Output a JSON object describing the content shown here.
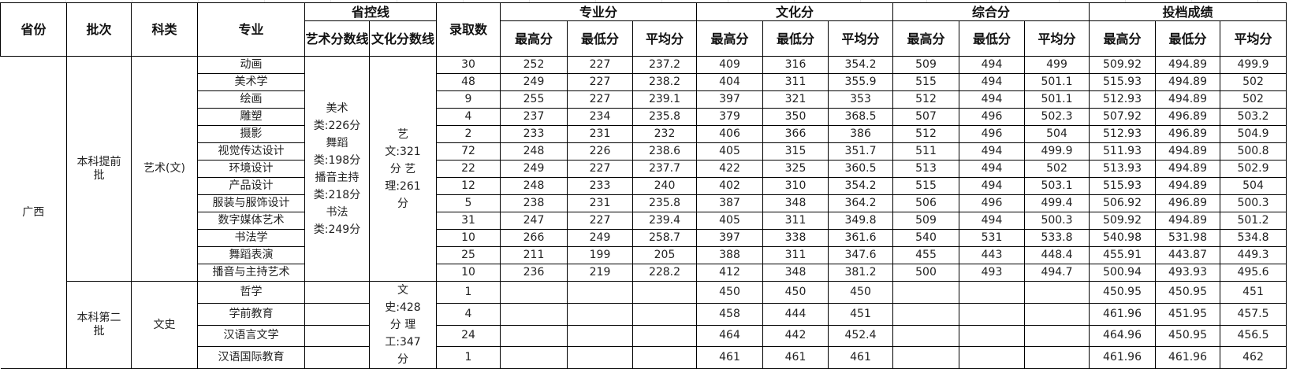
{
  "headers": {
    "province": "省份",
    "batch": "批次",
    "category": "科类",
    "major": "专业",
    "control_line": "省控线",
    "art_line": "艺术分数线",
    "culture_line": "文化分数线",
    "admitted": "录取数",
    "professional": "专业分",
    "culture": "文化分",
    "composite": "综合分",
    "filing": "投档成绩",
    "max": "最高分",
    "min": "最低分",
    "avg": "平均分"
  },
  "province": "广西",
  "groups": [
    {
      "batch": "本科提前批",
      "category": "艺术(文)",
      "art_line": "美术类:226分 舞蹈类:198分 播音主持类:218分 书法类:249分",
      "culture_line": "艺文:321分 艺理:261分",
      "rows": [
        [
          "动画",
          "30",
          "252",
          "227",
          "237.2",
          "409",
          "316",
          "354.2",
          "509",
          "494",
          "499",
          "509.92",
          "494.89",
          "499.9"
        ],
        [
          "美术学",
          "48",
          "249",
          "227",
          "238.2",
          "404",
          "311",
          "355.9",
          "515",
          "494",
          "501.1",
          "515.93",
          "494.89",
          "502"
        ],
        [
          "绘画",
          "9",
          "255",
          "227",
          "239.1",
          "397",
          "321",
          "353",
          "512",
          "494",
          "501.1",
          "512.93",
          "494.89",
          "502"
        ],
        [
          "雕塑",
          "4",
          "237",
          "234",
          "235.8",
          "379",
          "350",
          "368.5",
          "507",
          "496",
          "502.3",
          "507.92",
          "496.89",
          "503.2"
        ],
        [
          "摄影",
          "2",
          "233",
          "231",
          "232",
          "406",
          "366",
          "386",
          "512",
          "496",
          "504",
          "512.93",
          "496.89",
          "504.9"
        ],
        [
          "视觉传达设计",
          "72",
          "248",
          "226",
          "238.6",
          "405",
          "315",
          "351.7",
          "511",
          "494",
          "499.9",
          "511.93",
          "494.89",
          "500.8"
        ],
        [
          "环境设计",
          "22",
          "249",
          "227",
          "237.7",
          "422",
          "325",
          "360.5",
          "513",
          "494",
          "502",
          "513.93",
          "494.89",
          "502.9"
        ],
        [
          "产品设计",
          "12",
          "248",
          "233",
          "240",
          "402",
          "310",
          "354.2",
          "515",
          "494",
          "503.1",
          "515.93",
          "494.89",
          "504"
        ],
        [
          "服装与服饰设计",
          "5",
          "238",
          "231",
          "235.8",
          "387",
          "348",
          "364.2",
          "506",
          "496",
          "499.4",
          "506.92",
          "496.89",
          "500.3"
        ],
        [
          "数字媒体艺术",
          "31",
          "247",
          "227",
          "239.4",
          "405",
          "311",
          "349.8",
          "509",
          "494",
          "500.3",
          "509.92",
          "494.89",
          "501.2"
        ],
        [
          "书法学",
          "10",
          "266",
          "249",
          "258.7",
          "397",
          "338",
          "361.6",
          "540",
          "531",
          "533.8",
          "540.98",
          "531.98",
          "534.8"
        ],
        [
          "舞蹈表演",
          "25",
          "211",
          "199",
          "205",
          "388",
          "311",
          "347.6",
          "455",
          "443",
          "448.4",
          "455.91",
          "443.87",
          "449.3"
        ],
        [
          "播音与主持艺术",
          "10",
          "236",
          "219",
          "228.2",
          "412",
          "348",
          "381.2",
          "500",
          "493",
          "494.7",
          "500.94",
          "493.93",
          "495.6"
        ]
      ]
    },
    {
      "batch": "本科第二批",
      "category": "文史",
      "art_line": "",
      "culture_line": "文史:428分 理工:347分",
      "rows": [
        [
          "哲学",
          "1",
          "",
          "",
          "",
          "450",
          "450",
          "450",
          "",
          "",
          "",
          "450.95",
          "450.95",
          "451"
        ],
        [
          "学前教育",
          "4",
          "",
          "",
          "",
          "458",
          "444",
          "451",
          "",
          "",
          "",
          "461.96",
          "451.95",
          "457.5"
        ],
        [
          "汉语言文学",
          "24",
          "",
          "",
          "",
          "464",
          "442",
          "452.4",
          "",
          "",
          "",
          "464.96",
          "450.95",
          "456.5"
        ],
        [
          "汉语国际教育",
          "1",
          "",
          "",
          "",
          "461",
          "461",
          "461",
          "",
          "",
          "",
          "461.96",
          "461.96",
          "462"
        ]
      ]
    }
  ]
}
